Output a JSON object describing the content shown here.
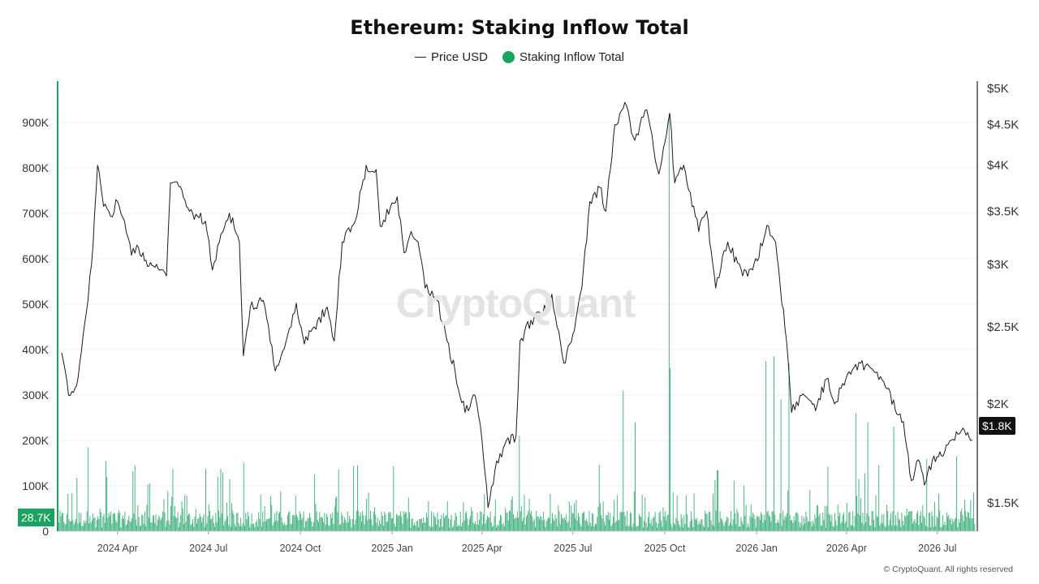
{
  "colors": {
    "price_line": "#1a1a1a",
    "inflow": "#1aa260",
    "badge_price": "#111111"
  },
  "chart_data": {
    "type": "bar+line",
    "title": "Ethereum: Staking Inflow Total",
    "legend": {
      "placement": "top-center",
      "entries": [
        "Price USD",
        "Staking Inflow Total"
      ]
    },
    "x_axis": {
      "range": [
        "2024-02-01",
        "2026-08-10"
      ],
      "tick_labels": [
        "2024 Apr",
        "2024 Jul",
        "2024 Oct",
        "2025 Jan",
        "2025 Apr",
        "2025 Jul",
        "2025 Oct",
        "2026 Jan",
        "2026 Apr",
        "2026 Jul"
      ],
      "tick_dates": [
        "2024-04-01",
        "2024-07-01",
        "2024-10-01",
        "2025-01-01",
        "2025-04-01",
        "2025-07-01",
        "2025-10-01",
        "2026-01-01",
        "2026-04-01",
        "2026-07-01"
      ]
    },
    "y_left": {
      "label": "",
      "scale": "linear",
      "range": [
        0,
        1000000
      ],
      "ticks": [
        0,
        100000,
        200000,
        300000,
        400000,
        500000,
        600000,
        700000,
        800000,
        900000
      ],
      "tick_labels": [
        "0",
        "100K",
        "200K",
        "300K",
        "400K",
        "500K",
        "600K",
        "700K",
        "800K",
        "900K"
      ]
    },
    "y_right": {
      "label": "",
      "scale": "log",
      "range": [
        1300,
        5000
      ],
      "ticks": [
        1500,
        2000,
        2500,
        3000,
        3500,
        4000,
        4500,
        5000
      ],
      "tick_labels": [
        "$1.5K",
        "$2K",
        "$2.5K",
        "$3K",
        "$3.5K",
        "$4K",
        "$4.5K",
        "$5K"
      ]
    },
    "grid": true,
    "series": [
      {
        "name": "Price USD",
        "type": "line",
        "axis": "right",
        "points": [
          [
            "2024-02-05",
            2320
          ],
          [
            "2024-02-12",
            2050
          ],
          [
            "2024-02-20",
            2110
          ],
          [
            "2024-02-28",
            2520
          ],
          [
            "2024-03-06",
            3000
          ],
          [
            "2024-03-12",
            4000
          ],
          [
            "2024-03-18",
            3550
          ],
          [
            "2024-03-25",
            3450
          ],
          [
            "2024-04-01",
            3600
          ],
          [
            "2024-04-08",
            3400
          ],
          [
            "2024-04-15",
            3080
          ],
          [
            "2024-04-22",
            3150
          ],
          [
            "2024-05-01",
            2980
          ],
          [
            "2024-05-10",
            3000
          ],
          [
            "2024-05-20",
            2900
          ],
          [
            "2024-05-24",
            3800
          ],
          [
            "2024-06-03",
            3760
          ],
          [
            "2024-06-12",
            3500
          ],
          [
            "2024-06-20",
            3450
          ],
          [
            "2024-06-28",
            3400
          ],
          [
            "2024-07-05",
            2950
          ],
          [
            "2024-07-12",
            3200
          ],
          [
            "2024-07-22",
            3480
          ],
          [
            "2024-08-01",
            3200
          ],
          [
            "2024-08-05",
            2300
          ],
          [
            "2024-08-12",
            2650
          ],
          [
            "2024-08-25",
            2700
          ],
          [
            "2024-09-06",
            2200
          ],
          [
            "2024-09-15",
            2350
          ],
          [
            "2024-09-27",
            2680
          ],
          [
            "2024-10-05",
            2380
          ],
          [
            "2024-10-15",
            2500
          ],
          [
            "2024-10-28",
            2650
          ],
          [
            "2024-11-04",
            2400
          ],
          [
            "2024-11-12",
            3200
          ],
          [
            "2024-11-25",
            3400
          ],
          [
            "2024-12-06",
            4000
          ],
          [
            "2024-12-16",
            3950
          ],
          [
            "2024-12-20",
            3350
          ],
          [
            "2025-01-06",
            3650
          ],
          [
            "2025-01-13",
            3100
          ],
          [
            "2025-01-20",
            3300
          ],
          [
            "2025-01-27",
            3200
          ],
          [
            "2025-02-03",
            2800
          ],
          [
            "2025-02-15",
            2700
          ],
          [
            "2025-02-25",
            2400
          ],
          [
            "2025-03-05",
            2200
          ],
          [
            "2025-03-15",
            1950
          ],
          [
            "2025-03-25",
            2050
          ],
          [
            "2025-04-01",
            1800
          ],
          [
            "2025-04-07",
            1480
          ],
          [
            "2025-04-14",
            1650
          ],
          [
            "2025-04-24",
            1780
          ],
          [
            "2025-05-05",
            1820
          ],
          [
            "2025-05-09",
            2400
          ],
          [
            "2025-05-20",
            2550
          ],
          [
            "2025-06-01",
            2600
          ],
          [
            "2025-06-10",
            2750
          ],
          [
            "2025-06-22",
            2250
          ],
          [
            "2025-07-01",
            2450
          ],
          [
            "2025-07-10",
            2800
          ],
          [
            "2025-07-18",
            3600
          ],
          [
            "2025-07-28",
            3750
          ],
          [
            "2025-08-03",
            3500
          ],
          [
            "2025-08-12",
            4500
          ],
          [
            "2025-08-22",
            4800
          ],
          [
            "2025-09-01",
            4300
          ],
          [
            "2025-09-13",
            4700
          ],
          [
            "2025-09-25",
            3900
          ],
          [
            "2025-10-06",
            4650
          ],
          [
            "2025-10-11",
            3800
          ],
          [
            "2025-10-20",
            4000
          ],
          [
            "2025-11-04",
            3300
          ],
          [
            "2025-11-12",
            3500
          ],
          [
            "2025-11-21",
            2800
          ],
          [
            "2025-12-03",
            3200
          ],
          [
            "2025-12-18",
            2900
          ],
          [
            "2025-12-28",
            2950
          ],
          [
            "2026-01-13",
            3350
          ],
          [
            "2026-01-20",
            3200
          ],
          [
            "2026-01-31",
            2400
          ],
          [
            "2026-02-05",
            1950
          ],
          [
            "2026-02-15",
            2050
          ],
          [
            "2026-03-01",
            1960
          ],
          [
            "2026-03-12",
            2150
          ],
          [
            "2026-03-20",
            2000
          ],
          [
            "2026-04-02",
            2180
          ],
          [
            "2026-04-15",
            2250
          ],
          [
            "2026-04-25",
            2220
          ],
          [
            "2026-05-10",
            2100
          ],
          [
            "2026-05-28",
            1900
          ],
          [
            "2026-06-05",
            1600
          ],
          [
            "2026-06-12",
            1700
          ],
          [
            "2026-06-18",
            1580
          ],
          [
            "2026-06-26",
            1700
          ],
          [
            "2026-07-05",
            1720
          ],
          [
            "2026-07-15",
            1800
          ],
          [
            "2026-07-25",
            1850
          ],
          [
            "2026-08-05",
            1800
          ]
        ]
      },
      {
        "name": "Staking Inflow Total",
        "type": "bar",
        "axis": "left",
        "note": "daily inflows mostly 10K-120K with spikes",
        "spikes": [
          [
            "2024-03-02",
            185000
          ],
          [
            "2024-03-20",
            155000
          ],
          [
            "2024-04-18",
            145000
          ],
          [
            "2024-07-10",
            120000
          ],
          [
            "2024-08-05",
            150000
          ],
          [
            "2025-05-08",
            210000
          ],
          [
            "2025-08-20",
            310000
          ],
          [
            "2025-09-01",
            240000
          ],
          [
            "2025-10-05",
            920000
          ],
          [
            "2025-10-06",
            360000
          ],
          [
            "2026-01-10",
            375000
          ],
          [
            "2026-01-18",
            385000
          ],
          [
            "2026-01-25",
            290000
          ],
          [
            "2026-02-02",
            370000
          ],
          [
            "2026-04-10",
            260000
          ],
          [
            "2026-04-22",
            240000
          ],
          [
            "2026-05-18",
            230000
          ],
          [
            "2026-06-20",
            160000
          ],
          [
            "2026-07-20",
            165000
          ]
        ]
      }
    ],
    "current_values": {
      "staking_inflow": "28.7K",
      "price": "$1.8K"
    }
  },
  "watermark": "CryptoQuant",
  "copyright": "© CryptoQuant. All rights reserved"
}
